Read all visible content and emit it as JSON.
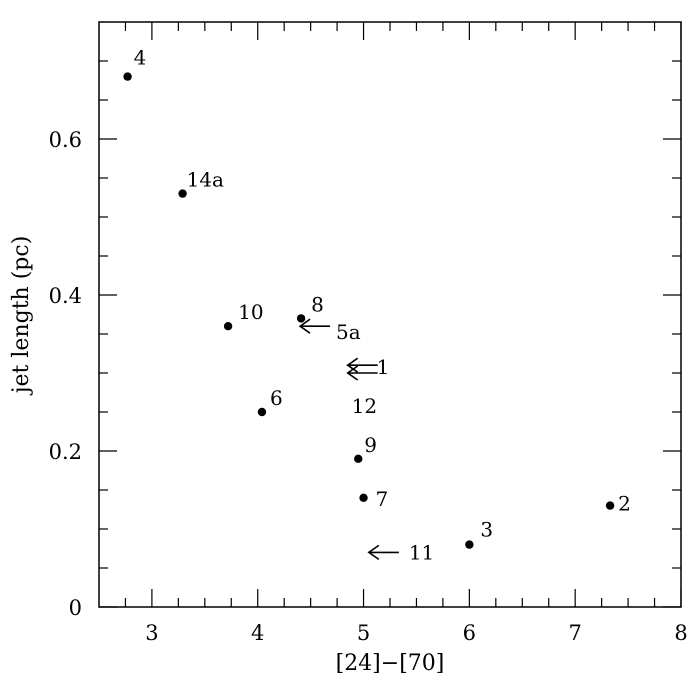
{
  "chart_data": {
    "type": "scatter",
    "xlabel": "[24]−[70]",
    "ylabel": "jet length (pc)",
    "xlim": [
      2.5,
      8
    ],
    "ylim": [
      0,
      0.75
    ],
    "x_major_ticks": [
      3,
      4,
      5,
      6,
      7,
      8
    ],
    "x_minor_ticks": [
      2.75,
      3.25,
      3.5,
      3.75,
      4.25,
      4.5,
      4.75,
      5.25,
      5.5,
      5.75,
      6.25,
      6.5,
      6.75,
      7.25,
      7.5,
      7.75
    ],
    "y_major_ticks": [
      0,
      0.2,
      0.4,
      0.6
    ],
    "y_minor_ticks": [
      0.05,
      0.1,
      0.15,
      0.25,
      0.3,
      0.35,
      0.45,
      0.5,
      0.55,
      0.65,
      0.7
    ],
    "x_tick_labels": [
      "3",
      "4",
      "5",
      "6",
      "7",
      "8"
    ],
    "y_tick_labels": [
      "0",
      "0.2",
      "0.4",
      "0.6"
    ],
    "points": [
      {
        "label": "4",
        "x": 2.77,
        "y": 0.68
      },
      {
        "label": "14a",
        "x": 3.29,
        "y": 0.53
      },
      {
        "label": "10",
        "x": 3.72,
        "y": 0.36
      },
      {
        "label": "8",
        "x": 4.41,
        "y": 0.37
      },
      {
        "label": "6",
        "x": 4.04,
        "y": 0.25
      },
      {
        "label": "9",
        "x": 4.95,
        "y": 0.19
      },
      {
        "label": "7",
        "x": 5.0,
        "y": 0.14
      },
      {
        "label": "3",
        "x": 6.0,
        "y": 0.08
      },
      {
        "label": "2",
        "x": 7.33,
        "y": 0.13
      }
    ],
    "upper_limits": [
      {
        "label": "5a",
        "x": 4.4,
        "y": 0.36
      },
      {
        "label": "1",
        "x": 4.85,
        "y": 0.31
      },
      {
        "label": "12",
        "x": 4.85,
        "y": 0.3
      },
      {
        "label": "11",
        "x": 5.05,
        "y": 0.07
      }
    ]
  }
}
